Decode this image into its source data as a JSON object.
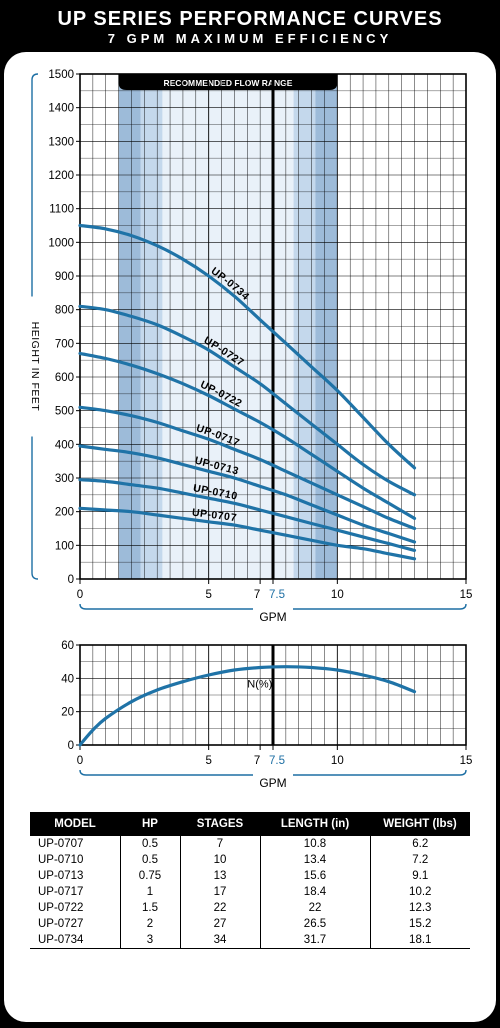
{
  "header": {
    "title": "UP SERIES PERFORMANCE CURVES",
    "subtitle": "7 GPM MAXIMUM EFFICIENCY"
  },
  "colors": {
    "curve": "#1f73a7",
    "band_outer": "#9dbbd9",
    "band_mid": "#c4d8ec",
    "band_inner": "#e9f1f9",
    "axis_label": "#1d6fa4"
  },
  "chart_data": [
    {
      "type": "line",
      "xlabel": "GPM",
      "ylabel": "HEIGHT IN FEET",
      "xlim": [
        0,
        15
      ],
      "ylim": [
        0,
        1500
      ],
      "x_ticks": [
        0,
        5,
        7,
        7.5,
        10,
        15
      ],
      "x_tick_labels": [
        "0",
        "5",
        "7",
        "7.5",
        "10",
        "15"
      ],
      "y_ticks": [
        0,
        100,
        200,
        300,
        400,
        500,
        600,
        700,
        800,
        900,
        1000,
        1100,
        1200,
        1300,
        1400,
        1500
      ],
      "grid": true,
      "recommended_range": {
        "label": "RECOMMENDED FLOW RANGE",
        "from": 1.5,
        "to": 10
      },
      "marker_x": 7.5,
      "x": [
        0,
        1,
        2,
        3,
        4,
        5,
        6,
        7,
        8,
        9,
        10,
        11,
        12,
        13
      ],
      "series": [
        {
          "name": "UP-0734",
          "values": [
            1050,
            1040,
            1020,
            990,
            950,
            900,
            840,
            770,
            700,
            630,
            560,
            480,
            400,
            330
          ]
        },
        {
          "name": "UP-0727",
          "values": [
            810,
            800,
            780,
            755,
            720,
            680,
            630,
            580,
            520,
            460,
            400,
            340,
            290,
            250
          ]
        },
        {
          "name": "UP-0722",
          "values": [
            670,
            655,
            635,
            610,
            580,
            545,
            505,
            465,
            420,
            370,
            320,
            270,
            225,
            180
          ]
        },
        {
          "name": "UP-0717",
          "values": [
            510,
            500,
            485,
            465,
            440,
            415,
            385,
            355,
            320,
            285,
            250,
            215,
            180,
            150
          ]
        },
        {
          "name": "UP-0713",
          "values": [
            395,
            385,
            375,
            360,
            340,
            320,
            300,
            275,
            250,
            220,
            190,
            160,
            135,
            110
          ]
        },
        {
          "name": "UP-0710",
          "values": [
            295,
            290,
            280,
            270,
            255,
            240,
            225,
            205,
            185,
            165,
            145,
            125,
            105,
            85
          ]
        },
        {
          "name": "UP-0707",
          "values": [
            210,
            205,
            200,
            190,
            180,
            170,
            160,
            145,
            130,
            115,
            100,
            90,
            75,
            60
          ]
        }
      ]
    },
    {
      "type": "line",
      "xlabel": "GPM",
      "ylabel": "",
      "xlim": [
        0,
        15
      ],
      "ylim": [
        0,
        60
      ],
      "x_ticks": [
        0,
        5,
        7,
        7.5,
        10,
        15
      ],
      "x_tick_labels": [
        "0",
        "5",
        "7",
        "7.5",
        "10",
        "15"
      ],
      "y_ticks": [
        0,
        20,
        40,
        60
      ],
      "grid": true,
      "marker_x": 7.5,
      "x": [
        0,
        0.5,
        1,
        2,
        3,
        4,
        5,
        6,
        7,
        8,
        9,
        10,
        11,
        12,
        13
      ],
      "series": [
        {
          "name": "N(%)",
          "values": [
            0,
            9,
            16,
            26,
            33,
            38,
            42,
            45,
            46.5,
            47,
            46.5,
            45,
            42,
            38,
            32
          ]
        }
      ]
    }
  ],
  "table": {
    "headers": [
      "MODEL",
      "HP",
      "STAGES",
      "LENGTH (in)",
      "WEIGHT (lbs)"
    ],
    "rows": [
      [
        "UP-0707",
        "0.5",
        "7",
        "10.8",
        "6.2"
      ],
      [
        "UP-0710",
        "0.5",
        "10",
        "13.4",
        "7.2"
      ],
      [
        "UP-0713",
        "0.75",
        "13",
        "15.6",
        "9.1"
      ],
      [
        "UP-0717",
        "1",
        "17",
        "18.4",
        "10.2"
      ],
      [
        "UP-0722",
        "1.5",
        "22",
        "22",
        "12.3"
      ],
      [
        "UP-0727",
        "2",
        "27",
        "26.5",
        "15.2"
      ],
      [
        "UP-0734",
        "3",
        "34",
        "31.7",
        "18.1"
      ]
    ]
  }
}
